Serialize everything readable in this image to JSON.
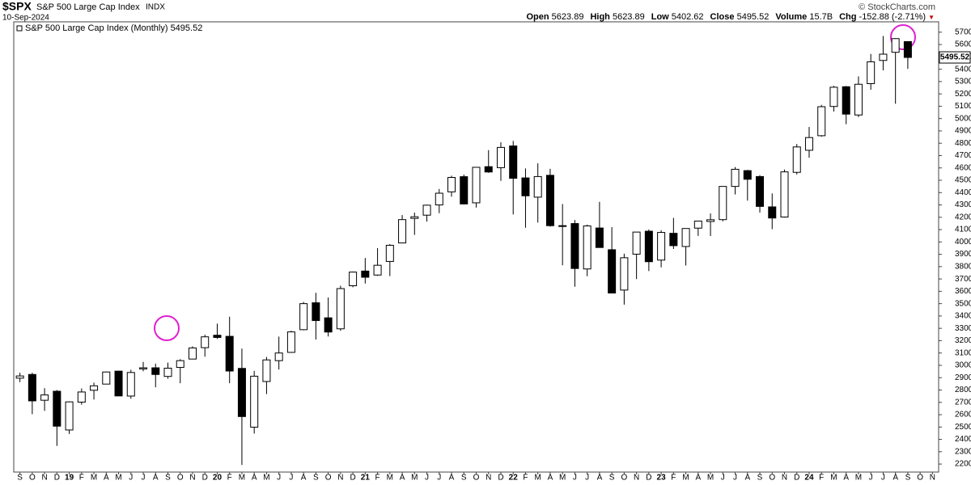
{
  "header": {
    "symbol": "$SPX",
    "name": "S&P 500 Large Cap Index",
    "exchange": "INDX",
    "date": "10-Sep-2024",
    "copyright": "© StockCharts.com",
    "stats": [
      {
        "label": "Open",
        "value": "5623.89"
      },
      {
        "label": "High",
        "value": "5623.89"
      },
      {
        "label": "Low",
        "value": "5402.62"
      },
      {
        "label": "Close",
        "value": "5495.52"
      },
      {
        "label": "Volume",
        "value": "15.7B"
      },
      {
        "label": "Chg",
        "value": "-152.88 (-2.71%)"
      }
    ]
  },
  "chart_data": {
    "type": "candlestick",
    "legend": "S&P 500 Large Cap Index (Monthly) 5495.52",
    "last_price": 5495.52,
    "categories": [
      "S",
      "O",
      "N",
      "D",
      "19",
      "F",
      "M",
      "A",
      "M",
      "J",
      "J",
      "A",
      "S",
      "O",
      "N",
      "D",
      "20",
      "F",
      "M",
      "A",
      "M",
      "J",
      "J",
      "A",
      "S",
      "O",
      "N",
      "D",
      "21",
      "F",
      "M",
      "A",
      "M",
      "J",
      "J",
      "A",
      "S",
      "O",
      "N",
      "D",
      "22",
      "F",
      "M",
      "A",
      "M",
      "J",
      "J",
      "A",
      "S",
      "O",
      "N",
      "D",
      "23",
      "F",
      "M",
      "A",
      "M",
      "J",
      "J",
      "A",
      "S",
      "O",
      "N",
      "D",
      "24",
      "F",
      "M",
      "A",
      "M",
      "J",
      "J",
      "A",
      "S",
      "O",
      "N"
    ],
    "open": [
      2896,
      2926,
      2717,
      2790,
      2476,
      2702,
      2798,
      2848,
      2953,
      2751,
      2971,
      2980,
      2910,
      2983,
      3051,
      3143,
      3244,
      3235,
      2975,
      2499,
      2869,
      3038,
      3105,
      3289,
      3507,
      3385,
      3296,
      3645,
      3764,
      3732,
      3842,
      3992,
      4191,
      4217,
      4300,
      4406,
      4529,
      4317,
      4610,
      4602,
      4778,
      4519,
      4363,
      4540,
      4130,
      4149,
      3781,
      4113,
      3937,
      3610,
      3901,
      4087,
      3853,
      4070,
      3963,
      4112,
      4166,
      4181,
      4450,
      4578,
      4530,
      4284,
      4202,
      4564,
      4743,
      4861,
      5098,
      5258,
      5029,
      5283,
      5471,
      5537,
      5623.89,
      null,
      null
    ],
    "high": [
      2940,
      2940,
      2815,
      2800,
      2708,
      2813,
      2860,
      2950,
      2955,
      2964,
      3028,
      3014,
      3022,
      3050,
      3154,
      3248,
      3338,
      3394,
      3136,
      2955,
      3068,
      3233,
      3280,
      3514,
      3588,
      3550,
      3645,
      3760,
      3870,
      3950,
      3983,
      4218,
      4238,
      4302,
      4429,
      4537,
      4546,
      4608,
      4744,
      4808,
      4819,
      4596,
      4637,
      4593,
      4307,
      4178,
      4140,
      4325,
      4120,
      3905,
      4080,
      4101,
      4095,
      4195,
      4110,
      4170,
      4231,
      4449,
      4607,
      4584,
      4541,
      4393,
      4587,
      4794,
      4932,
      5111,
      5265,
      5264,
      5342,
      5524,
      5669,
      5651,
      5623.89,
      null,
      null
    ],
    "low": [
      2864,
      2604,
      2631,
      2347,
      2444,
      2681,
      2723,
      2848,
      2750,
      2729,
      2952,
      2822,
      2892,
      2855,
      3051,
      3070,
      3214,
      2855,
      2192,
      2447,
      2767,
      2966,
      3101,
      3284,
      3209,
      3234,
      3280,
      3633,
      3663,
      3725,
      3723,
      3992,
      4057,
      4165,
      4233,
      4367,
      4305,
      4279,
      4560,
      4495,
      4223,
      4115,
      4157,
      4124,
      3811,
      3637,
      3722,
      3955,
      3585,
      3492,
      3699,
      3764,
      3794,
      3943,
      3809,
      4049,
      4048,
      4167,
      4385,
      4335,
      4238,
      4104,
      4197,
      4547,
      4683,
      4853,
      5057,
      4954,
      5012,
      5234,
      5391,
      5120,
      5402.62,
      null,
      null
    ],
    "close": [
      2914,
      2712,
      2760,
      2507,
      2704,
      2784,
      2834,
      2946,
      2752,
      2942,
      2980,
      2926,
      2977,
      3038,
      3141,
      3231,
      3226,
      2954,
      2585,
      2912,
      3044,
      3100,
      3271,
      3500,
      3363,
      3270,
      3622,
      3756,
      3714,
      3811,
      3973,
      4181,
      4204,
      4298,
      4395,
      4523,
      4308,
      4605,
      4567,
      4766,
      4516,
      4374,
      4530,
      4132,
      4132,
      3785,
      4130,
      3955,
      3586,
      3872,
      4080,
      3840,
      4077,
      3970,
      4109,
      4169,
      4180,
      4450,
      4589,
      4508,
      4288,
      4194,
      4568,
      4770,
      4846,
      5096,
      5254,
      5036,
      5278,
      5460,
      5522,
      5648,
      5495.52,
      null,
      null
    ],
    "ylim": [
      2135,
      5784
    ],
    "yticks": [
      2200,
      2300,
      2400,
      2500,
      2600,
      2700,
      2800,
      2900,
      3000,
      3100,
      3200,
      3300,
      3400,
      3500,
      3600,
      3700,
      3800,
      3900,
      4000,
      4100,
      4200,
      4300,
      4400,
      4500,
      4600,
      4700,
      4800,
      4900,
      5000,
      5100,
      5200,
      5300,
      5400,
      5500,
      5600,
      5700
    ]
  }
}
